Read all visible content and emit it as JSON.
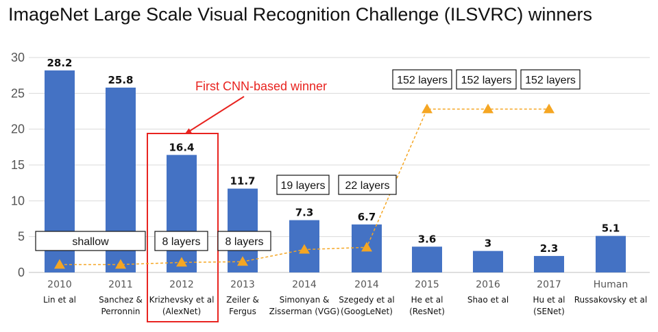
{
  "title": "ImageNet Large Scale Visual Recognition Challenge (ILSVRC) winners",
  "colors": {
    "bar": "#4472c4",
    "line": "#f5a623",
    "highlight": "#e8231f"
  },
  "chart_data": {
    "type": "bar",
    "title": "ImageNet Large Scale Visual Recognition Challenge (ILSVRC) winners",
    "ylim": [
      0,
      30
    ],
    "yticks": [
      0,
      5,
      10,
      15,
      20,
      25,
      30
    ],
    "grid": true,
    "categories": [
      "2010",
      "2011",
      "2012",
      "2013",
      "2014",
      "2014",
      "2015",
      "2016",
      "2017",
      "Human"
    ],
    "sublabels": [
      [
        "Lin et al"
      ],
      [
        "Sanchez &",
        "Perronnin"
      ],
      [
        "Krizhevsky et al",
        "(AlexNet)"
      ],
      [
        "Zeiler &",
        "Fergus"
      ],
      [
        "Simonyan &",
        "Zisserman (VGG)"
      ],
      [
        "Szegedy et al",
        "(GoogLeNet)"
      ],
      [
        "He et al",
        "(ResNet)"
      ],
      [
        "Shao et al"
      ],
      [
        "Hu et al",
        "(SENet)"
      ],
      [
        "Russakovsky et al"
      ]
    ],
    "values": [
      28.2,
      25.8,
      16.4,
      11.7,
      7.3,
      6.7,
      3.6,
      3,
      2.3,
      5.1
    ],
    "value_labels": [
      "28.2",
      "25.8",
      "16.4",
      "11.7",
      "7.3",
      "6.7",
      "3.6",
      "3",
      "2.3",
      "5.1"
    ],
    "depth_line": {
      "style": "dashed",
      "marker": "triangle",
      "points": [
        1.1,
        1.1,
        1.4,
        1.5,
        3.2,
        3.5,
        22.8,
        22.8,
        22.8
      ]
    },
    "layer_boxes": [
      {
        "text": "shallow"
      },
      {
        "text": "8 layers"
      },
      {
        "text": "8 layers"
      },
      {
        "text": "19 layers"
      },
      {
        "text": "22 layers"
      },
      {
        "text": "152 layers"
      },
      {
        "text": "152 layers"
      },
      {
        "text": "152 layers"
      }
    ],
    "annotation": {
      "text": "First CNN-based winner",
      "target": "2012"
    }
  }
}
